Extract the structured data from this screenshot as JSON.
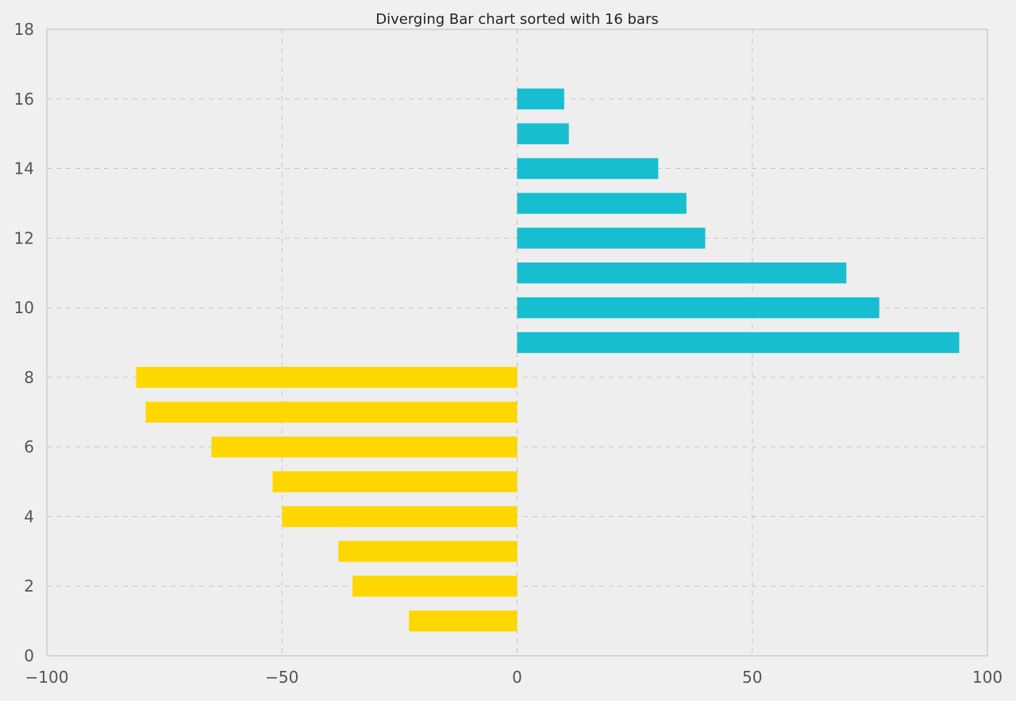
{
  "chart_data": {
    "type": "bar",
    "orientation": "horizontal",
    "title": "Diverging Bar chart sorted with 16 bars",
    "xlabel": "",
    "ylabel": "",
    "xlim": [
      -100,
      100
    ],
    "ylim": [
      0,
      18
    ],
    "x_ticks": [
      -100,
      -50,
      0,
      50,
      100
    ],
    "x_tick_labels": [
      "−100",
      "−50",
      "0",
      "50",
      "100"
    ],
    "y_ticks": [
      0,
      2,
      4,
      6,
      8,
      10,
      12,
      14,
      16,
      18
    ],
    "y_tick_labels": [
      "0",
      "2",
      "4",
      "6",
      "8",
      "10",
      "12",
      "14",
      "16",
      "18"
    ],
    "grid": true,
    "positions": [
      1,
      2,
      3,
      4,
      5,
      6,
      7,
      8,
      9,
      10,
      11,
      12,
      13,
      14,
      15,
      16
    ],
    "values": [
      -23,
      -35,
      -38,
      -50,
      -52,
      -65,
      -79,
      -81,
      94,
      77,
      70,
      40,
      36,
      30,
      11,
      10
    ],
    "colors": {
      "negative": "#ffd700",
      "positive": "#17becf",
      "plot_background": "#eeeeee",
      "figure_background": "#f0f0f0",
      "spine": "#bcbcbc"
    }
  }
}
